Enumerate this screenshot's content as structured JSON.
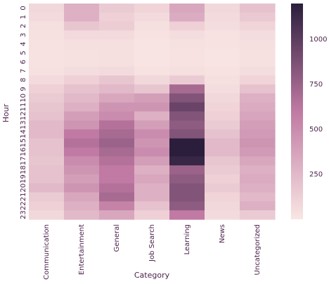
{
  "chart_data": {
    "type": "heatmap",
    "title": "",
    "xlabel": "Category",
    "ylabel": "Hour",
    "categories": [
      "Communication",
      "Entertainment",
      "General",
      "Job Search",
      "Learning",
      "News",
      "Uncategorized"
    ],
    "hours": [
      "0",
      "1",
      "2",
      "3",
      "4",
      "5",
      "6",
      "7",
      "8",
      "9",
      "10",
      "11",
      "12",
      "13",
      "14",
      "15",
      "16",
      "17",
      "18",
      "19",
      "20",
      "21",
      "22",
      "23"
    ],
    "values": [
      [
        80,
        300,
        150,
        100,
        350,
        80,
        200
      ],
      [
        60,
        300,
        120,
        60,
        320,
        60,
        160
      ],
      [
        40,
        180,
        140,
        40,
        120,
        50,
        100
      ],
      [
        30,
        60,
        60,
        20,
        50,
        20,
        50
      ],
      [
        20,
        40,
        40,
        10,
        30,
        20,
        40
      ],
      [
        20,
        30,
        40,
        10,
        20,
        10,
        30
      ],
      [
        20,
        30,
        40,
        10,
        20,
        10,
        30
      ],
      [
        30,
        50,
        60,
        20,
        40,
        20,
        50
      ],
      [
        60,
        120,
        180,
        80,
        150,
        40,
        100
      ],
      [
        120,
        200,
        250,
        180,
        700,
        50,
        200
      ],
      [
        150,
        250,
        350,
        400,
        850,
        80,
        300
      ],
      [
        180,
        300,
        450,
        450,
        950,
        100,
        320
      ],
      [
        200,
        400,
        500,
        300,
        850,
        120,
        360
      ],
      [
        250,
        450,
        650,
        400,
        800,
        150,
        400
      ],
      [
        250,
        600,
        700,
        500,
        850,
        200,
        420
      ],
      [
        200,
        650,
        750,
        450,
        1200,
        250,
        450
      ],
      [
        200,
        600,
        700,
        500,
        1200,
        250,
        420
      ],
      [
        180,
        500,
        650,
        400,
        1150,
        180,
        350
      ],
      [
        200,
        450,
        600,
        300,
        750,
        150,
        300
      ],
      [
        200,
        400,
        600,
        350,
        800,
        120,
        320
      ],
      [
        250,
        450,
        650,
        300,
        850,
        150,
        300
      ],
      [
        150,
        350,
        700,
        300,
        850,
        100,
        250
      ],
      [
        120,
        300,
        550,
        200,
        800,
        80,
        300
      ],
      [
        80,
        250,
        350,
        120,
        600,
        60,
        150
      ]
    ],
    "colorbar": {
      "min": 0,
      "max": 1200,
      "ticks": [
        250,
        500,
        750,
        1000
      ]
    },
    "colors": {
      "low": "#f9e6e3",
      "mid": "#c07aa3",
      "high": "#2b1e3d",
      "text": "#4a1f48"
    }
  }
}
